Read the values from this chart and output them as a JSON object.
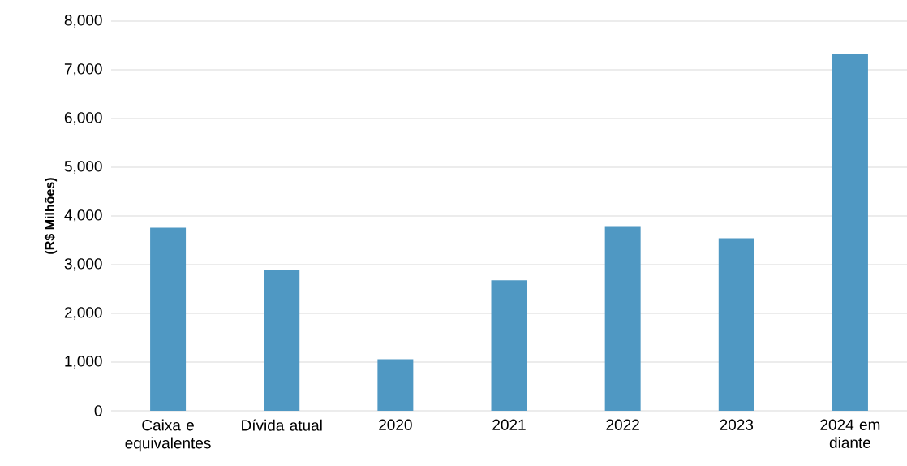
{
  "chart_data": {
    "type": "bar",
    "ylabel": "(R$ Milhões)",
    "categories": [
      "Caixa e equivalentes",
      "Dívida atual",
      "2020",
      "2021",
      "2022",
      "2023",
      "2024 em diante"
    ],
    "values": [
      3760,
      2890,
      1060,
      2680,
      3790,
      3540,
      7330
    ],
    "color": "#4f98c3",
    "ylim": [
      0,
      8000
    ],
    "yticks": [
      0,
      {
        "value": 1000,
        "label": "1,000"
      },
      {
        "value": 2000,
        "label": "2,000"
      },
      {
        "value": 3000,
        "label": "3,000"
      },
      {
        "value": 4000,
        "label": "4,000"
      },
      {
        "value": 5000,
        "label": "5,000"
      },
      {
        "value": 6000,
        "label": "6,000"
      },
      {
        "value": 7000,
        "label": "7,000"
      },
      {
        "value": 8000,
        "label": "8,000"
      }
    ],
    "grid": "y"
  }
}
